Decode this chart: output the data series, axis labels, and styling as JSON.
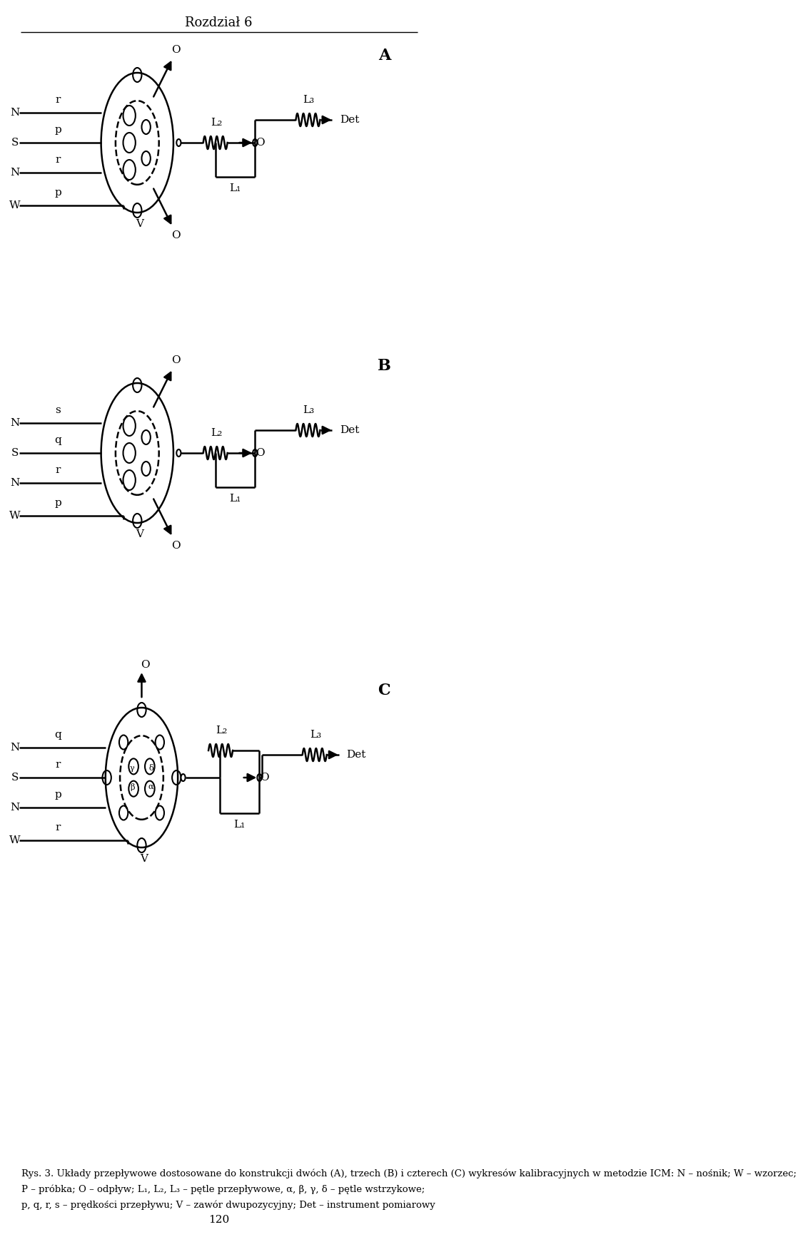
{
  "title": "Rozdział 6",
  "page_number": "120",
  "label_A": "A",
  "label_B": "B",
  "label_C": "C",
  "caption_lines": [
    "Rys. 3. Układy przepływowe dostosowane do konstrukcji dwóch (A), trzech (B) i czterech (C) wykresów kalibracyjnych w metodzie ICM: N – nośnik; W – wzorzec;",
    "P – próbka; O – odpływ; L₁, L₂, L₃ – pętle przepływowe, α, β, γ, δ – pętle wstrzykowe;",
    "p, q, r, s – prędkości przepływu; V – zawór dwupozycyjny; Det – instrument pomiarowy"
  ],
  "bg_color": "#ffffff",
  "line_color": "#000000"
}
